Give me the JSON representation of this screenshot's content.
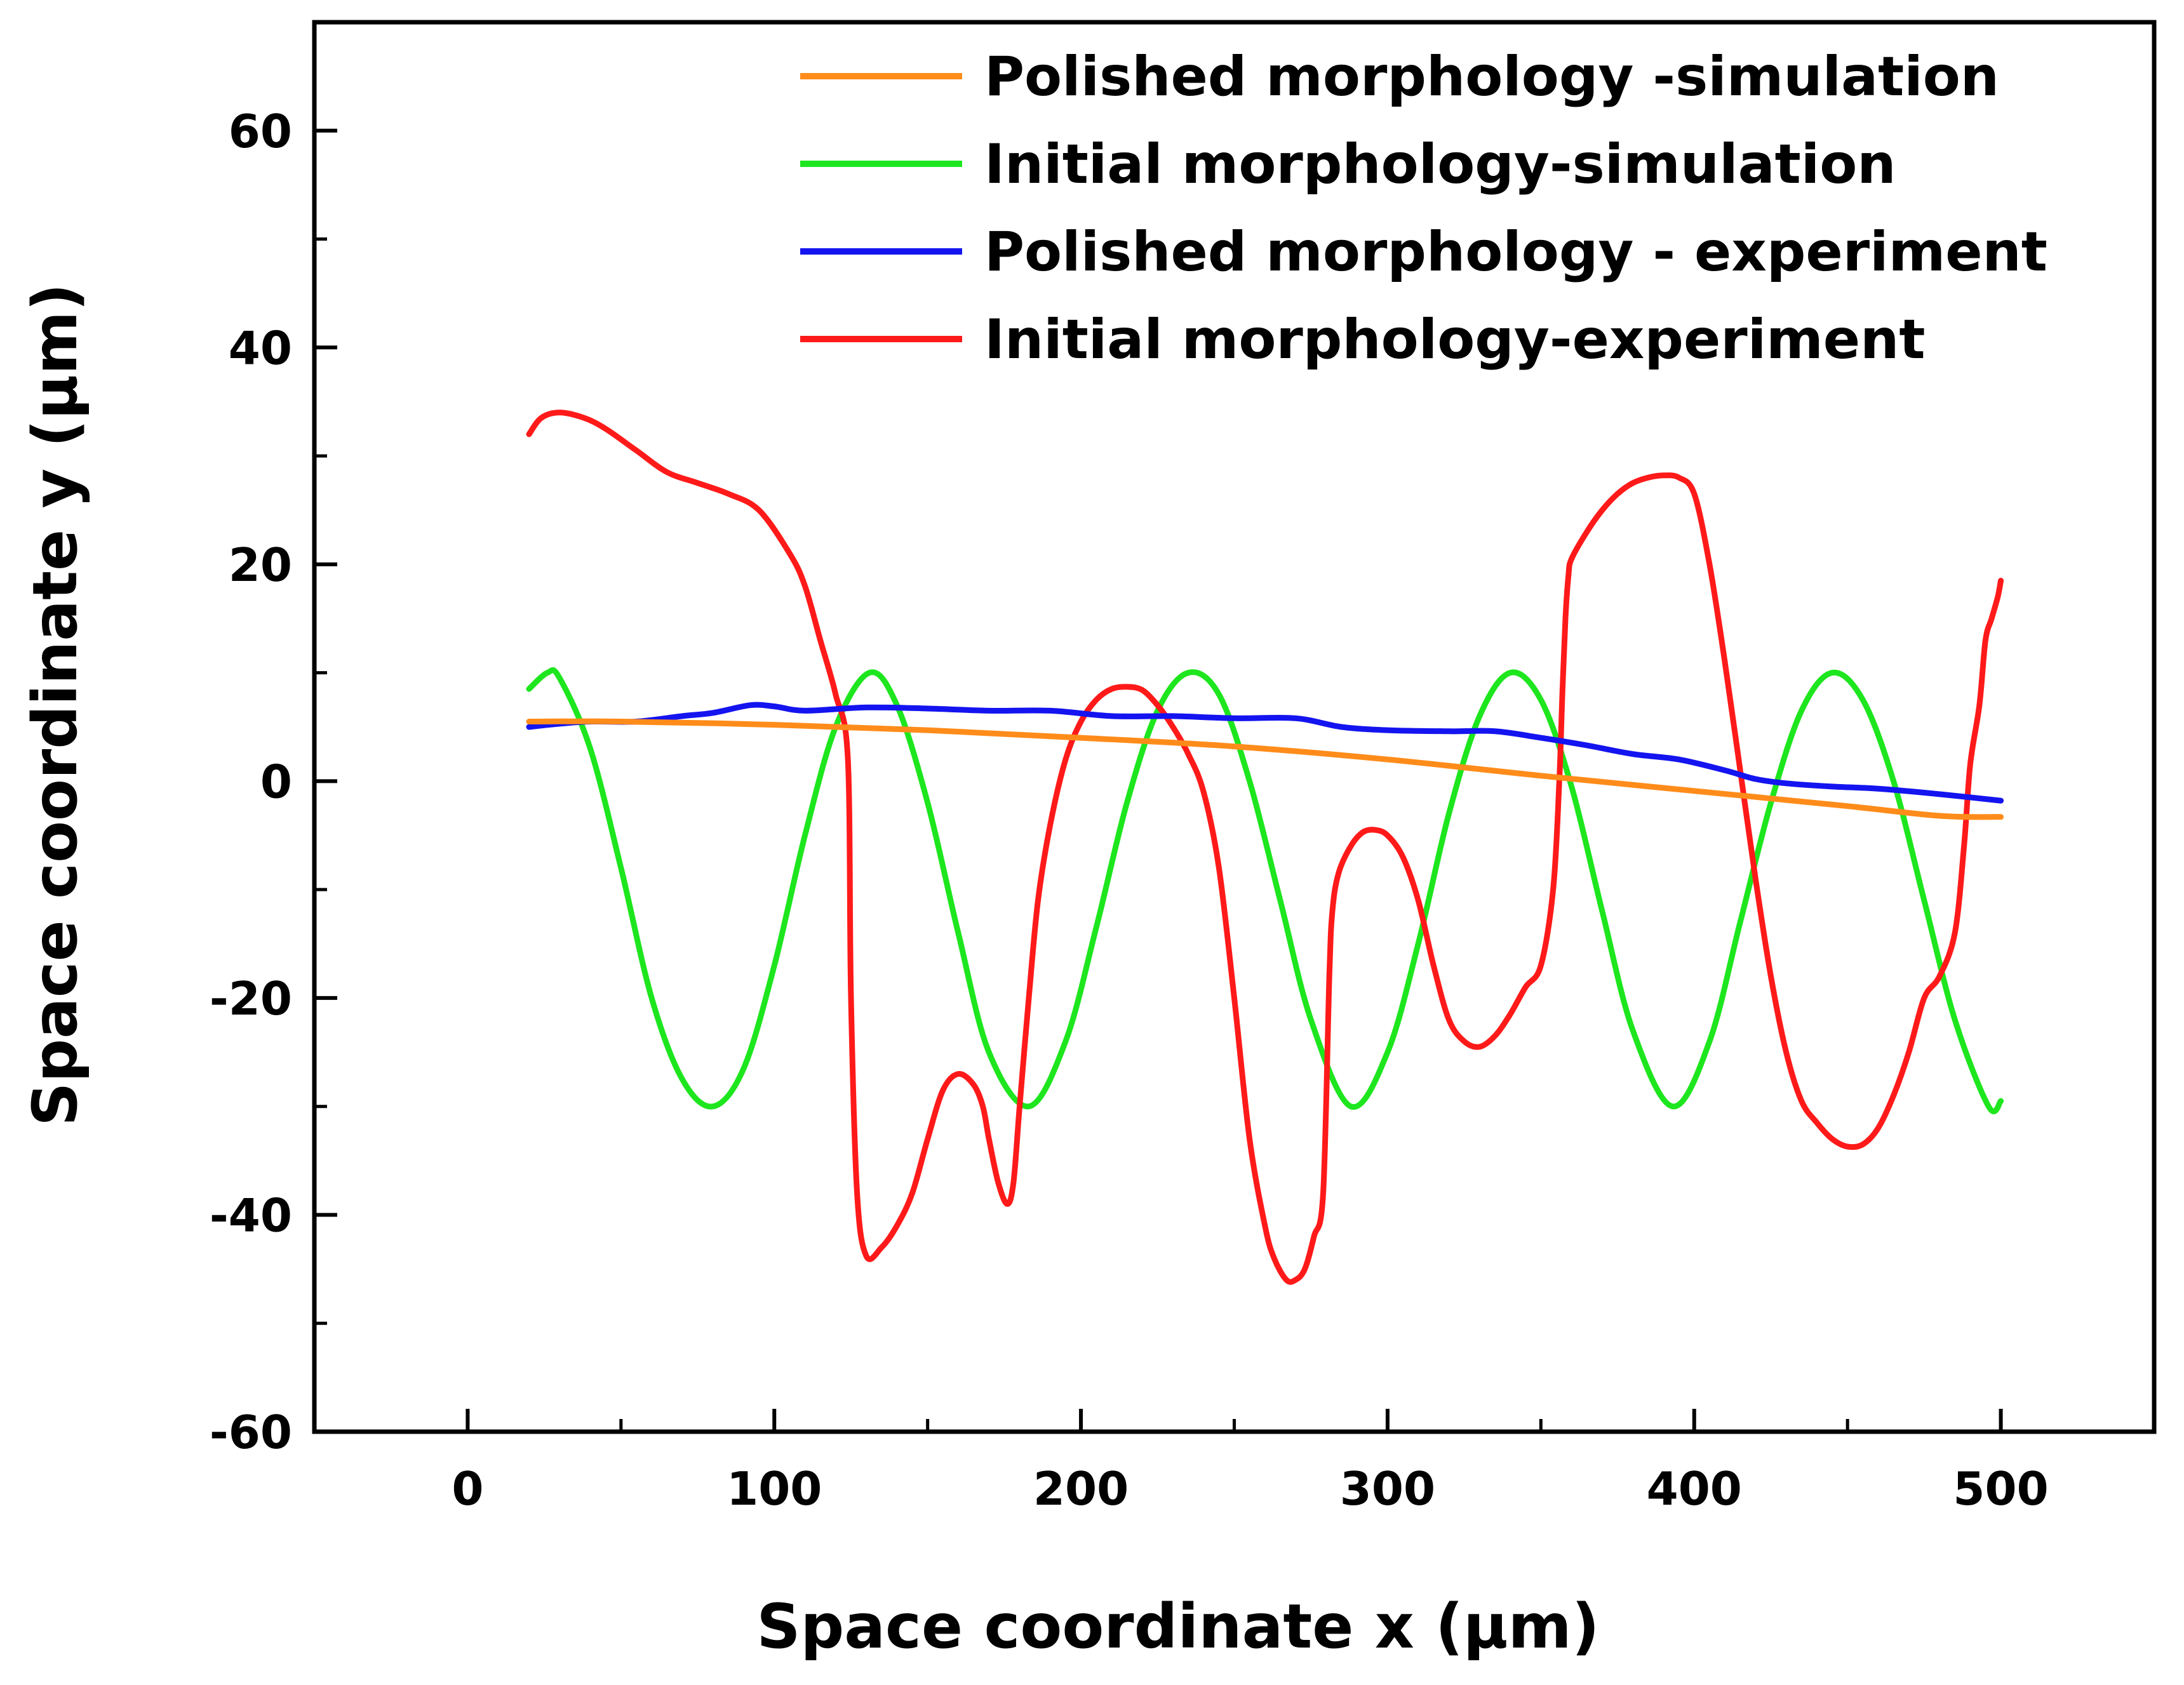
{
  "chart_data": {
    "type": "line",
    "title": "",
    "xlabel": "Space coordinate x (μm)",
    "ylabel": "Space coordinate y (μm)",
    "xlim": [
      -50,
      550
    ],
    "ylim": [
      -60,
      70
    ],
    "xticks": [
      0,
      100,
      200,
      300,
      400,
      500
    ],
    "xtick_labels": [
      "0",
      "100",
      "200",
      "300",
      "400",
      "500"
    ],
    "yticks": [
      -60,
      -40,
      -20,
      0,
      20,
      40,
      60
    ],
    "ytick_labels": [
      "-60",
      "-40",
      "-20",
      "0",
      "20",
      "40",
      "60"
    ],
    "grid": false,
    "legend_position": "top-right",
    "series": [
      {
        "name": "Polished morphology -simulation",
        "color": "#ff8c1a",
        "x": [
          20,
          50,
          100,
          150,
          200,
          250,
          300,
          350,
          400,
          450,
          480,
          500
        ],
        "y": [
          5.5,
          5.5,
          5.2,
          4.7,
          4.0,
          3.2,
          2.0,
          0.5,
          -0.9,
          -2.3,
          -3.2,
          -3.3
        ]
      },
      {
        "name": "Initial morphology-simulation",
        "color": "#1ee61e",
        "x": [
          20,
          26,
          30,
          40,
          50,
          60,
          70,
          80,
          90,
          100,
          110,
          120,
          131,
          140,
          150,
          160,
          170,
          183,
          195,
          205,
          215,
          225,
          235,
          245,
          255,
          265,
          275,
          288,
          300,
          310,
          320,
          330,
          340,
          350,
          360,
          370,
          380,
          393,
          405,
          415,
          425,
          435,
          445,
          455,
          465,
          475,
          485,
          496,
          500
        ],
        "y": [
          8.5,
          10.0,
          9.5,
          3.0,
          -8.0,
          -20.0,
          -27.5,
          -30.0,
          -26.5,
          -17.0,
          -5.0,
          5.0,
          10.0,
          7.0,
          -2.0,
          -14.0,
          -25.0,
          -30.0,
          -24.0,
          -13.5,
          -2.0,
          6.5,
          10.0,
          8.0,
          0.0,
          -11.0,
          -22.0,
          -30.0,
          -25.0,
          -15.0,
          -3.0,
          6.0,
          10.0,
          7.5,
          -0.5,
          -12.0,
          -23.0,
          -30.0,
          -24.0,
          -13.0,
          -2.0,
          6.5,
          10.0,
          7.5,
          0.0,
          -11.0,
          -22.0,
          -30.0,
          -29.5
        ]
      },
      {
        "name": "Polished morphology - experiment",
        "color": "#1414f0",
        "x": [
          20,
          30,
          40,
          55,
          70,
          80,
          92,
          100,
          110,
          130,
          150,
          170,
          190,
          210,
          230,
          250,
          270,
          285,
          300,
          320,
          335,
          350,
          365,
          380,
          395,
          410,
          420,
          430,
          445,
          460,
          480,
          500
        ],
        "y": [
          5.0,
          5.3,
          5.5,
          5.5,
          6.0,
          6.3,
          7.0,
          6.9,
          6.5,
          6.8,
          6.7,
          6.5,
          6.5,
          6.0,
          6.0,
          5.8,
          5.8,
          5.0,
          4.7,
          4.6,
          4.6,
          4.0,
          3.3,
          2.5,
          2.0,
          1.0,
          0.2,
          -0.2,
          -0.5,
          -0.7,
          -1.2,
          -1.8
        ]
      },
      {
        "name": "Initial morphology-experiment",
        "color": "#ff1a1a",
        "x": [
          20,
          24,
          30,
          38,
          45,
          55,
          65,
          75,
          85,
          95,
          105,
          110,
          115,
          120,
          124,
          125,
          127,
          130,
          135,
          140,
          145,
          150,
          155,
          160,
          165,
          168,
          170,
          173,
          176,
          178,
          180,
          183,
          186,
          190,
          195,
          200,
          205,
          210,
          215,
          220,
          225,
          230,
          235,
          240,
          245,
          250,
          255,
          260,
          263,
          267,
          270,
          273,
          276,
          279,
          281,
          282,
          284,
          288,
          292,
          296,
          300,
          305,
          310,
          315,
          320,
          325,
          330,
          335,
          340,
          345,
          350,
          354,
          356,
          357,
          358,
          359,
          360,
          365,
          370,
          375,
          380,
          385,
          390,
          395,
          400,
          405,
          410,
          415,
          420,
          425,
          430,
          435,
          440,
          445,
          450,
          455,
          460,
          465,
          470,
          475,
          480,
          485,
          488,
          490,
          493,
          495,
          497,
          499,
          500
        ],
        "y": [
          32.0,
          33.5,
          34.0,
          33.5,
          32.5,
          30.5,
          28.5,
          27.5,
          26.5,
          25.0,
          21.0,
          18.0,
          13.0,
          8.0,
          2.0,
          -20.0,
          -38.0,
          -43.8,
          -43.0,
          -41.0,
          -38.0,
          -33.0,
          -28.5,
          -27.0,
          -28.0,
          -30.0,
          -33.0,
          -37.0,
          -39.0,
          -37.0,
          -30.0,
          -20.0,
          -11.0,
          -4.0,
          2.0,
          5.5,
          7.5,
          8.5,
          8.7,
          8.4,
          7.0,
          5.0,
          2.5,
          -1.0,
          -8.0,
          -20.0,
          -33.0,
          -41.0,
          -44.0,
          -46.0,
          -46.0,
          -45.0,
          -42.0,
          -38.0,
          -18.0,
          -12.0,
          -8.5,
          -6.0,
          -4.7,
          -4.5,
          -5.0,
          -7.0,
          -11.0,
          -17.0,
          -22.0,
          -24.0,
          -24.5,
          -23.5,
          -21.5,
          -19.0,
          -17.0,
          -10.0,
          0.0,
          8.0,
          15.0,
          19.0,
          20.5,
          23.0,
          25.0,
          26.5,
          27.5,
          28.0,
          28.2,
          28.0,
          26.5,
          20.0,
          11.0,
          1.0,
          -9.0,
          -18.0,
          -25.0,
          -29.5,
          -31.5,
          -33.0,
          -33.7,
          -33.5,
          -32.0,
          -29.0,
          -25.0,
          -20.0,
          -18.0,
          -14.0,
          -6.0,
          1.5,
          7.0,
          13.0,
          15.0,
          17.0,
          18.5
        ]
      }
    ]
  }
}
